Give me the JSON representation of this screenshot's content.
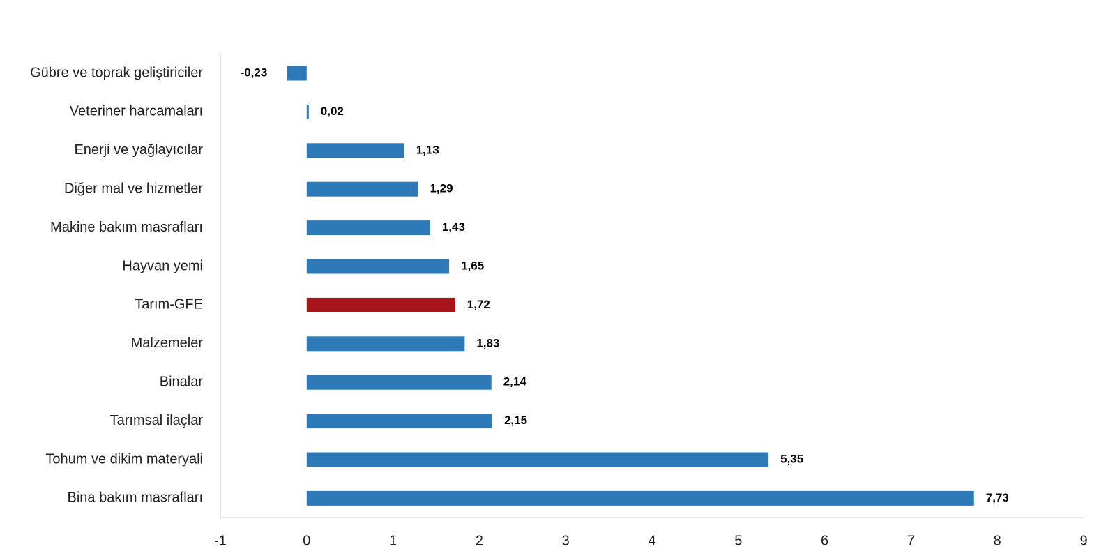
{
  "chart_data": {
    "type": "bar",
    "orientation": "horizontal",
    "title": "",
    "xlabel": "",
    "ylabel": "",
    "xlim": [
      -1,
      9
    ],
    "xticks": [
      -1,
      0,
      1,
      2,
      3,
      4,
      5,
      6,
      7,
      8,
      9
    ],
    "grid": false,
    "legend": "none",
    "categories": [
      "Gübre ve toprak geliştiriciler",
      "Veteriner harcamaları",
      "Enerji  ve yağlayıcılar",
      "Diğer mal ve hizmetler",
      "Makine bakım masrafları",
      "Hayvan yemi",
      "Tarım-GFE",
      "Malzemeler",
      "Binalar",
      "Tarımsal ilaçlar",
      "Tohum ve dikim materyali",
      "Bina bakım masrafları"
    ],
    "values": [
      -0.23,
      0.02,
      1.13,
      1.29,
      1.43,
      1.65,
      1.72,
      1.83,
      2.14,
      2.15,
      5.35,
      7.73
    ],
    "value_labels": [
      "-0,23",
      "0,02",
      "1,13",
      "1,29",
      "1,43",
      "1,65",
      "1,72",
      "1,83",
      "2,14",
      "2,15",
      "5,35",
      "7,73"
    ],
    "highlight_category": "Tarım-GFE",
    "colors": {
      "bar": "#2e7ab8",
      "highlight": "#a8141b"
    }
  }
}
